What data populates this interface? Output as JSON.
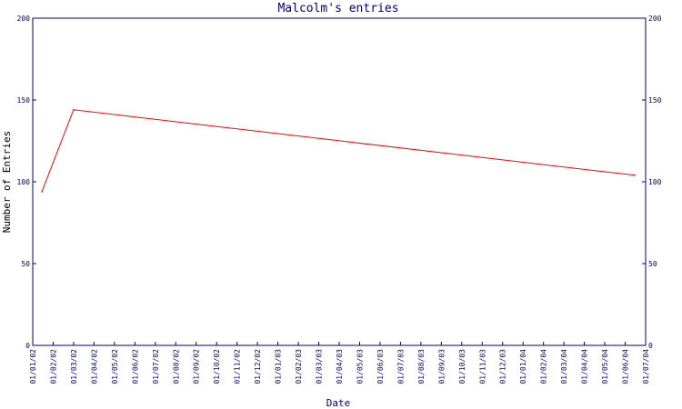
{
  "chart_data": {
    "type": "line",
    "title": "Malcolm's entries",
    "xlabel": "Date",
    "ylabel": "Number of Entries",
    "ylim": [
      0,
      200
    ],
    "yticks": [
      "0",
      "50",
      "100",
      "150",
      "200"
    ],
    "categories": [
      "01/01/02",
      "01/02/02",
      "01/03/02",
      "01/04/02",
      "01/05/02",
      "01/06/02",
      "01/07/02",
      "01/08/02",
      "01/09/02",
      "01/10/02",
      "01/11/02",
      "01/12/02",
      "01/01/03",
      "01/02/03",
      "01/03/03",
      "01/04/03",
      "01/05/03",
      "01/06/03",
      "01/07/03",
      "01/08/03",
      "01/09/03",
      "01/10/03",
      "01/11/03",
      "01/12/03",
      "01/01/04",
      "01/02/04",
      "01/03/04",
      "01/04/04",
      "01/05/04",
      "01/06/04",
      "01/07/04"
    ],
    "series": [
      {
        "color": "#ff0000",
        "points": [
          {
            "x": "2002-01-15",
            "y": 94
          },
          {
            "x": "2002-03-01",
            "y": 144
          },
          {
            "x": "2004-06-15",
            "y": 104
          }
        ]
      }
    ],
    "grid": false
  },
  "colors": {
    "axis": "#000080",
    "line": "#ff0000",
    "background": "#ffffff"
  }
}
